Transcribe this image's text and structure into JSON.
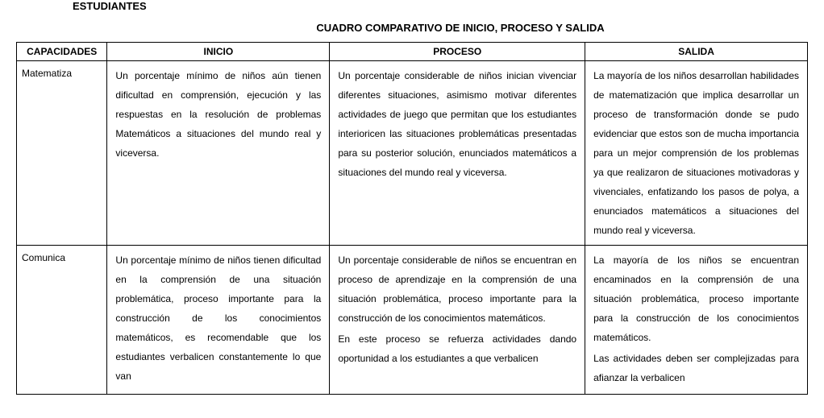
{
  "header_partial": "ESTUDIANTES",
  "title": "CUADRO COMPARATIVO DE INICIO, PROCESO Y SALIDA",
  "columns": {
    "cap": "CAPACIDADES",
    "inicio": "INICIO",
    "proceso": "PROCESO",
    "salida": "SALIDA"
  },
  "rows": [
    {
      "cap": "Matematiza",
      "inicio": "Un porcentaje mínimo de niños aún tienen dificultad en comprensión, ejecución y las respuestas en la resolución de problemas Matemáticos a situaciones del mundo real y viceversa.",
      "proceso": "Un porcentaje considerable de  niños inician vivenciar diferentes situaciones, asimismo motivar diferentes actividades de juego que permitan que los estudiantes interioricen las situaciones problemáticas presentadas para su posterior solución, enunciados  matemáticos a situaciones del mundo real y viceversa.",
      "salida": "La mayoría de los  niños desarrollan habilidades de matematización que implica desarrollar un proceso de transformación donde se pudo evidenciar que estos son de mucha importancia para un mejor comprensión de los problemas ya que realizaron de situaciones motivadoras y vivenciales, enfatizando los pasos de polya,   a enunciados matemáticos a situaciones del mundo real y viceversa."
    },
    {
      "cap": "Comunica",
      "inicio": "Un porcentaje mínimo de niños tienen dificultad en la comprensión de una situación problemática, proceso importante para la construcción de los conocimientos matemáticos, es recomendable que los estudiantes verbalicen constantemente lo que van",
      "proceso_p1": "Un porcentaje considerable de niños se encuentran en proceso de aprendizaje en la comprensión de una situación problemática, proceso importante para la construcción de los conocimientos matemáticos.",
      "proceso_p2": "En este proceso se refuerza actividades dando oportunidad a los estudiantes a que verbalicen",
      "salida_p1": "La mayoría de los  niños se encuentran encaminados en la comprensión de una situación problemática, proceso importante para la construcción de los conocimientos matemáticos.",
      "salida_p2": "Las actividades deben ser complejizadas para afianzar la verbalicen"
    }
  ]
}
